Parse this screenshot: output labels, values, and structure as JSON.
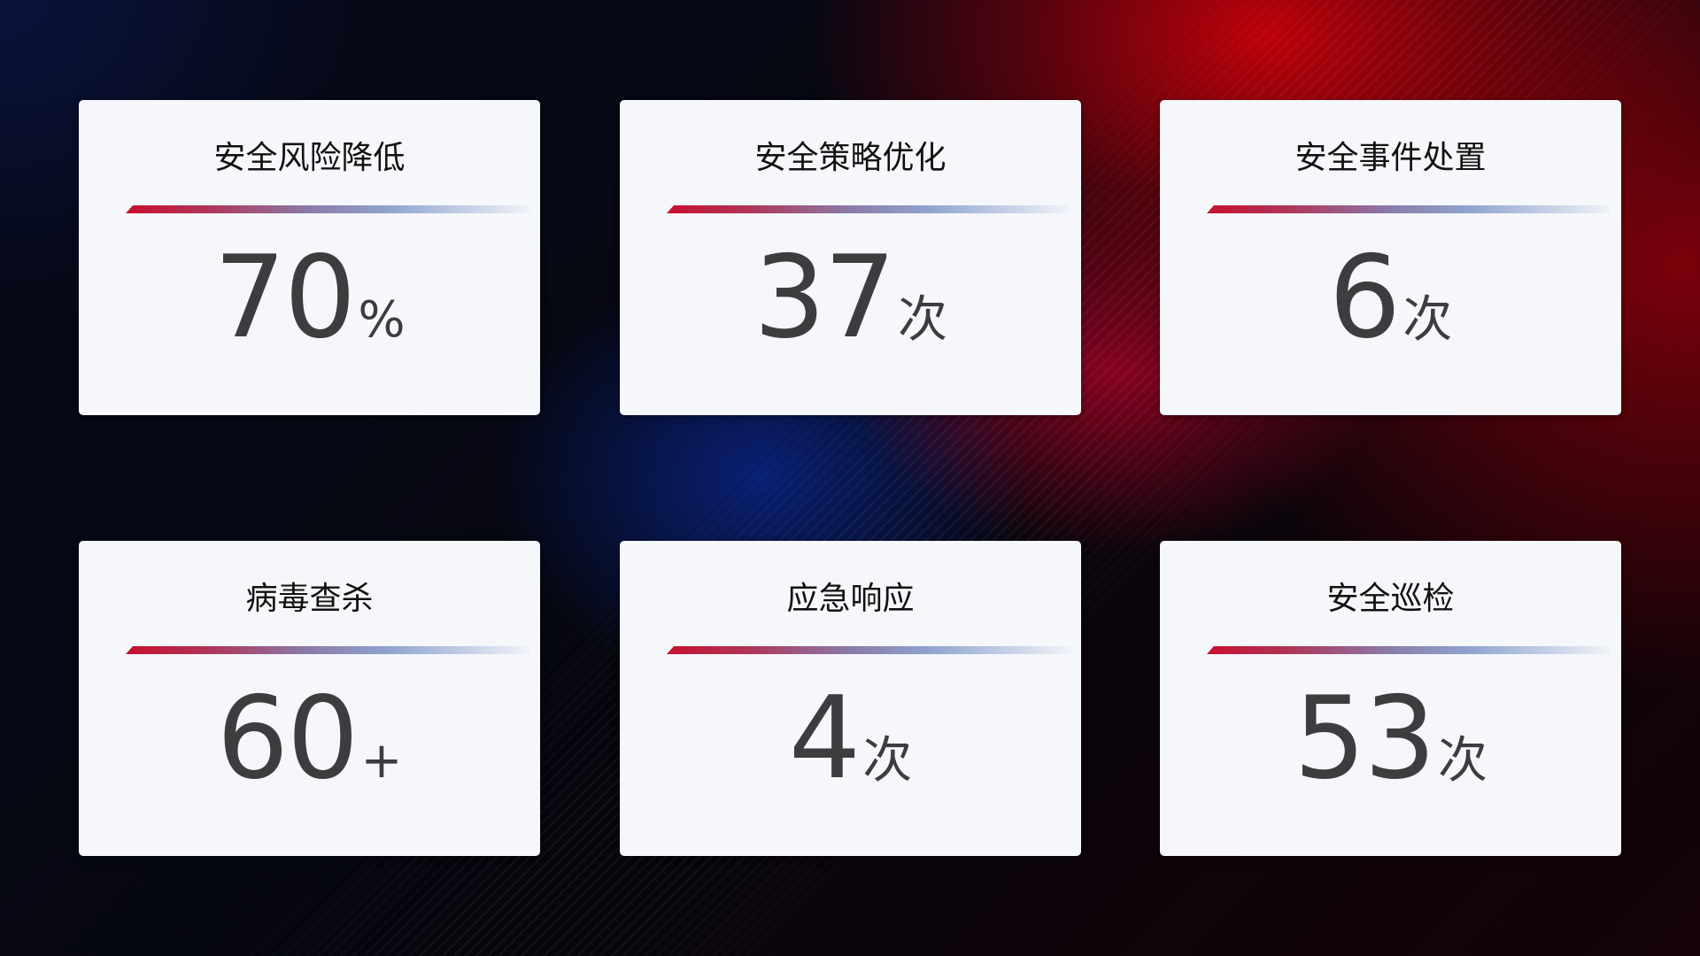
{
  "cards": [
    {
      "title": "安全风险降低",
      "value": "70",
      "unit": "%"
    },
    {
      "title": "安全策略优化",
      "value": "37",
      "unit": "次"
    },
    {
      "title": "安全事件处置",
      "value": "6",
      "unit": "次"
    },
    {
      "title": "病毒查杀",
      "value": "60",
      "unit": "+"
    },
    {
      "title": "应急响应",
      "value": "4",
      "unit": "次"
    },
    {
      "title": "安全巡检",
      "value": "53",
      "unit": "次"
    }
  ],
  "colors": {
    "accent_red": "#c8102e",
    "accent_blue": "#8fa4cf",
    "card_bg": "#f5f7fb"
  }
}
